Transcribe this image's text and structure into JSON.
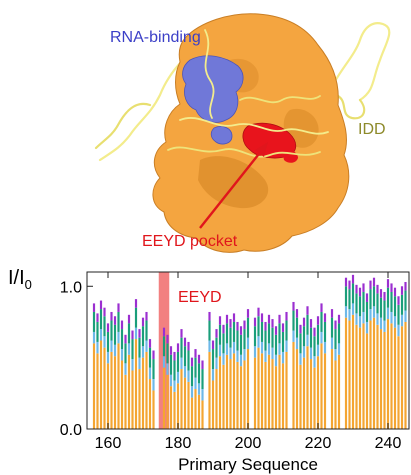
{
  "structure": {
    "labels": {
      "rna_binding": "RNA-binding",
      "idd": "IDD",
      "eeyd_pocket": "EEYD pocket"
    },
    "colors": {
      "surface": "#f4a540",
      "surface_shadow": "#d98a28",
      "rna_patch": "#7078d8",
      "pocket": "#e8141c",
      "coil": "#f3ec8c",
      "rna_label": "#3b3fc7",
      "idd_label": "#8d8a2a",
      "pocket_label": "#e0161c"
    }
  },
  "chart_data": {
    "type": "bar",
    "ylabel": "I/I",
    "ylabel_subscript": "0",
    "xlabel": "Primary Sequence",
    "xlim": [
      154,
      246
    ],
    "ylim": [
      0,
      1.1
    ],
    "xticks": [
      160,
      180,
      200,
      220,
      240
    ],
    "yticks": [
      0.0,
      1.0
    ],
    "ytick_labels": [
      "0.0",
      "1.0"
    ],
    "highlight": {
      "label": "EEYD",
      "x_start": 174.5,
      "x_end": 177.5,
      "color": "#f06a6a"
    },
    "layer_colors": [
      "#f4a532",
      "#6db8e8",
      "#1a9e7a",
      "#9b2fd0"
    ],
    "residues": [
      156,
      157,
      158,
      159,
      160,
      161,
      162,
      163,
      164,
      165,
      166,
      167,
      168,
      169,
      170,
      171,
      172,
      173,
      174,
      175,
      176,
      177,
      178,
      179,
      180,
      181,
      182,
      183,
      184,
      185,
      186,
      187,
      188,
      189,
      190,
      191,
      192,
      193,
      194,
      195,
      196,
      197,
      198,
      199,
      200,
      201,
      202,
      203,
      204,
      205,
      206,
      207,
      208,
      209,
      210,
      211,
      212,
      213,
      214,
      215,
      216,
      217,
      218,
      219,
      220,
      221,
      222,
      223,
      224,
      225,
      226,
      227,
      228,
      229,
      230,
      231,
      232,
      233,
      234,
      235,
      236,
      237,
      238,
      239,
      240,
      241,
      242,
      243,
      244,
      245
    ],
    "values": [
      0.88,
      0.81,
      0.9,
      0.85,
      0.74,
      0.82,
      0.79,
      0.88,
      0.76,
      0.66,
      0.8,
      0.69,
      0.91,
      0.7,
      0.78,
      0.82,
      0.63,
      0.55,
      null,
      null,
      0.71,
      0.66,
      0.58,
      0.54,
      0.6,
      0.7,
      0.64,
      0.61,
      0.5,
      0.56,
      0.52,
      0.48,
      null,
      0.82,
      0.62,
      0.7,
      0.79,
      0.73,
      0.8,
      0.77,
      0.81,
      0.75,
      0.72,
      0.76,
      0.84,
      null,
      0.78,
      0.85,
      0.81,
      0.75,
      0.8,
      0.77,
      0.72,
      0.8,
      0.74,
      0.82,
      null,
      0.89,
      0.84,
      0.73,
      0.78,
      0.86,
      0.77,
      0.71,
      0.79,
      0.88,
      0.81,
      null,
      0.84,
      0.76,
      0.8,
      null,
      1.06,
      1.04,
      1.08,
      1.01,
      0.99,
      1.02,
      0.95,
      1.04,
      1.06,
      1.01,
      0.98,
      0.96,
      1.05,
      1.02,
      0.99,
      0.93,
      1.0,
      1.03
    ]
  }
}
